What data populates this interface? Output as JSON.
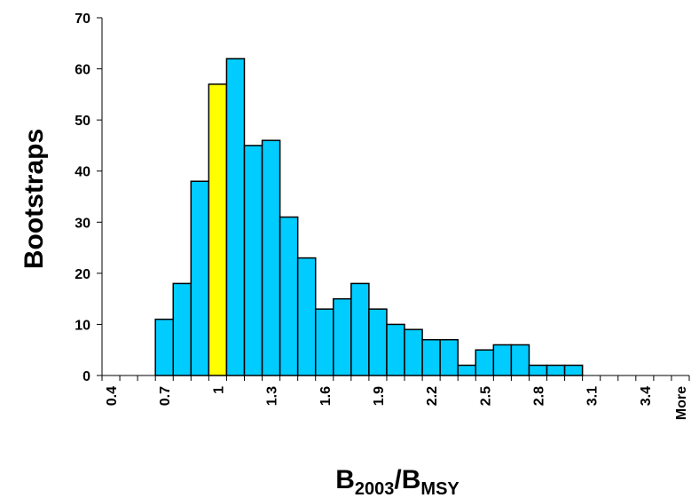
{
  "chart_data": {
    "type": "bar",
    "title": "",
    "xlabel": {
      "base": "B",
      "sub1": "2003",
      "slash": "/B",
      "sub2": "MSY"
    },
    "ylabel": "Bootstraps",
    "ylim": [
      0,
      70
    ],
    "yticks": [
      0,
      10,
      20,
      30,
      40,
      50,
      60,
      70
    ],
    "grid": false,
    "legend": "none",
    "categories": [
      "0.4",
      "0.5",
      "0.6",
      "0.7",
      "0.8",
      "0.9",
      "1",
      "1.1",
      "1.2",
      "1.3",
      "1.4",
      "1.5",
      "1.6",
      "1.7",
      "1.8",
      "1.9",
      "2",
      "2.1",
      "2.2",
      "2.3",
      "2.4",
      "2.5",
      "2.6",
      "2.7",
      "2.8",
      "2.9",
      "3",
      "3.1",
      "3.2",
      "3.3",
      "3.4",
      "3.5",
      "More"
    ],
    "tick_labels": [
      "0.4",
      "",
      "",
      "0.7",
      "",
      "",
      "1",
      "",
      "",
      "1.3",
      "",
      "",
      "1.6",
      "",
      "",
      "1.9",
      "",
      "",
      "2.2",
      "",
      "",
      "2.5",
      "",
      "",
      "2.8",
      "",
      "",
      "3.1",
      "",
      "",
      "3.4",
      "",
      "More"
    ],
    "values": [
      0,
      0,
      0,
      11,
      18,
      38,
      57,
      62,
      45,
      46,
      31,
      23,
      13,
      15,
      18,
      13,
      10,
      9,
      7,
      7,
      2,
      5,
      6,
      6,
      2,
      2,
      2,
      0,
      0,
      0,
      0,
      0,
      0
    ],
    "highlight_category": "1",
    "colors": {
      "bar": "#00CCFF",
      "highlight": "#FFFF00",
      "outline": "#000000"
    }
  }
}
